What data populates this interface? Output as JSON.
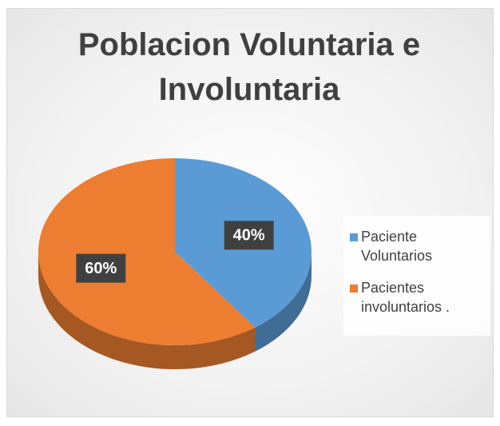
{
  "chart_data": {
    "type": "pie",
    "title": "Poblacion Voluntaria e Involuntaria",
    "categories": [
      "Paciente Voluntarios",
      "Pacientes involuntarios ."
    ],
    "values": [
      40,
      60
    ],
    "value_labels": [
      "40%",
      "60%"
    ],
    "colors": [
      "#5b9bd5",
      "#ed7d31"
    ],
    "legend": "right"
  }
}
